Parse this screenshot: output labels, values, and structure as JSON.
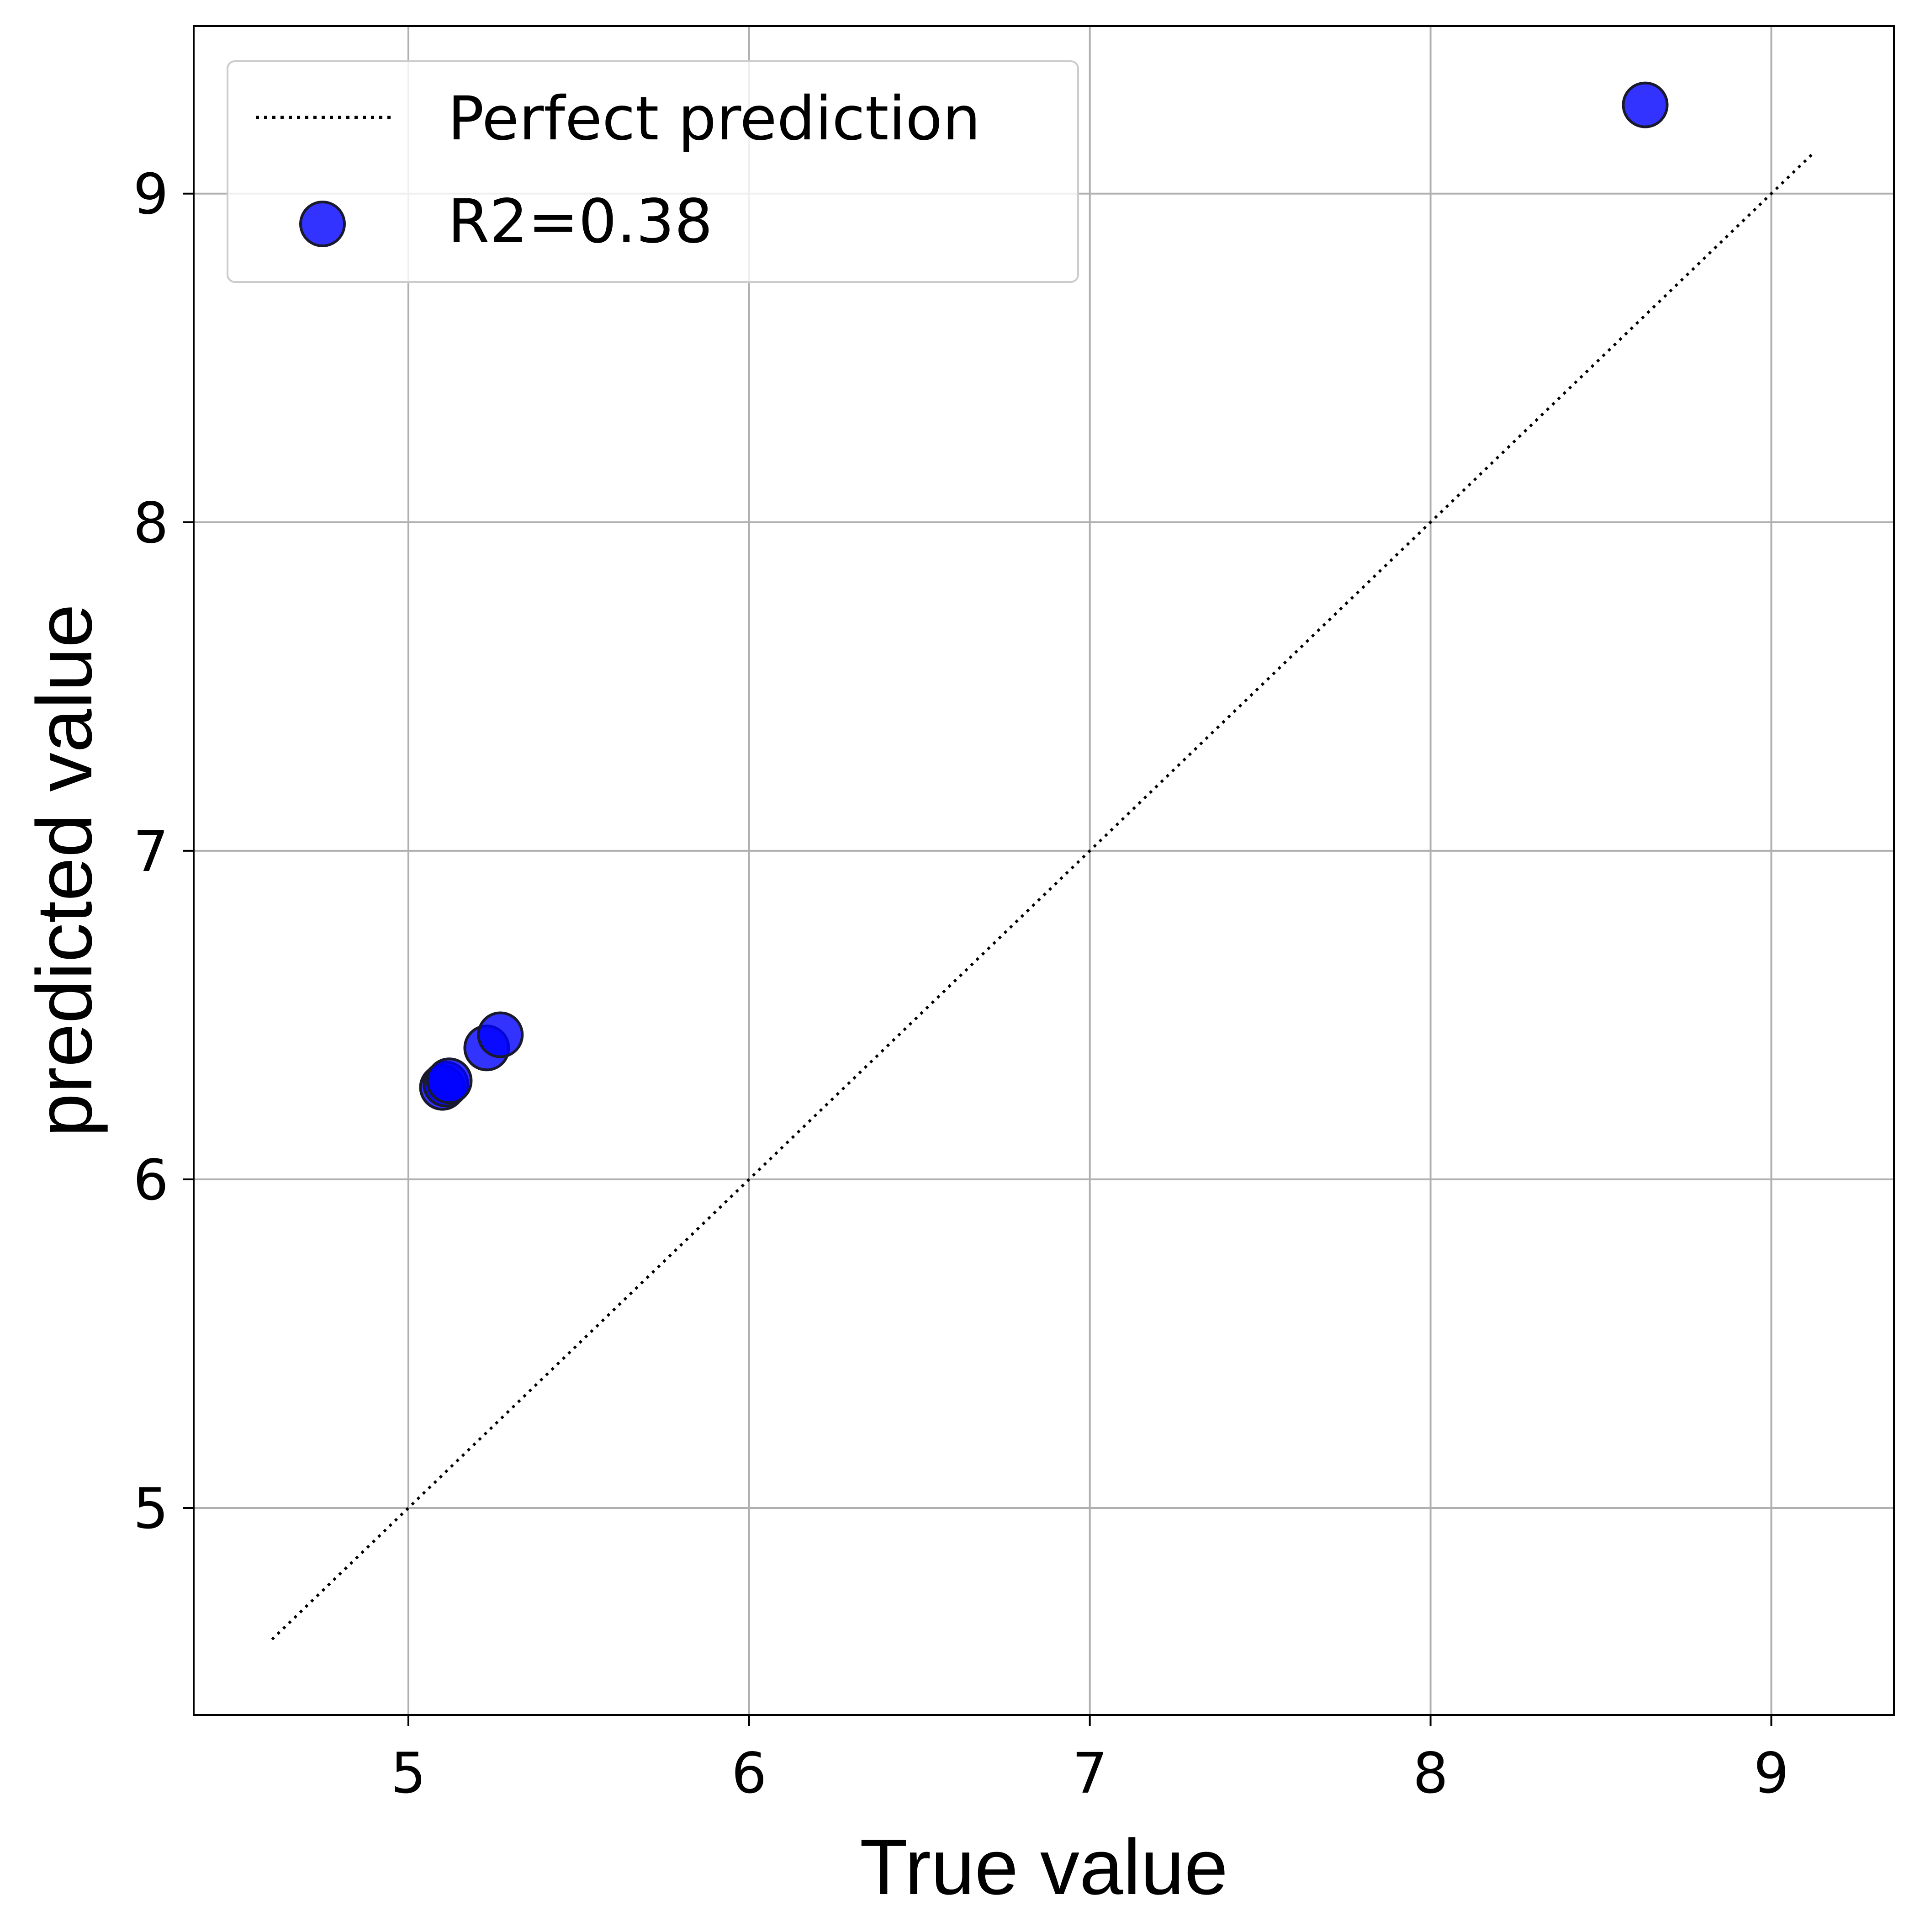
{
  "chart_data": {
    "type": "scatter",
    "title": "",
    "xlabel": "True value",
    "ylabel": "predicted value",
    "xlim": [
      4.37,
      9.36
    ],
    "ylim": [
      4.37,
      9.51
    ],
    "x_ticks": [
      5,
      6,
      7,
      8,
      9
    ],
    "y_ticks": [
      5,
      6,
      7,
      8,
      9
    ],
    "grid": true,
    "legend_position": "top-left",
    "reference_line": {
      "name": "Perfect prediction",
      "style": "dotted",
      "color": "#000000",
      "from": [
        4.6,
        4.6
      ],
      "to": [
        9.12,
        9.12
      ]
    },
    "series": [
      {
        "name": "R2=0.38",
        "color": "#0000ff",
        "edge_color": "#1a1a2e",
        "alpha": 0.8,
        "points": [
          {
            "x": 5.1,
            "y": 6.28
          },
          {
            "x": 5.11,
            "y": 6.29
          },
          {
            "x": 5.12,
            "y": 6.3
          },
          {
            "x": 5.23,
            "y": 6.4
          },
          {
            "x": 5.27,
            "y": 6.44
          },
          {
            "x": 8.63,
            "y": 9.27
          }
        ]
      }
    ]
  }
}
